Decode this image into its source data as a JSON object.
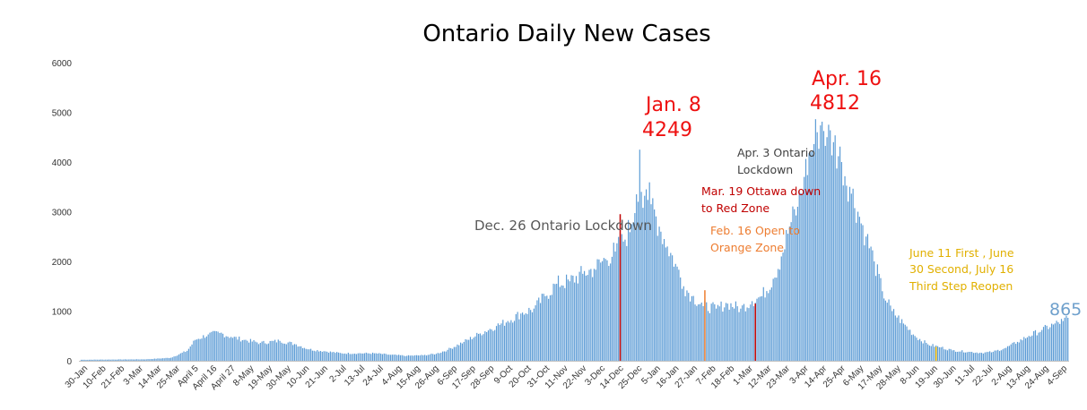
{
  "chart_data": {
    "type": "bar",
    "title": "Ontario Daily New Cases",
    "xlabel": "",
    "ylabel": "",
    "ylim": [
      0,
      6000
    ],
    "yticks": [
      0,
      1000,
      2000,
      3000,
      4000,
      5000,
      6000
    ],
    "grid": false,
    "legend": "none",
    "bar_color": "#5B9BD5",
    "x_tick_labels": [
      "30-Jan",
      "10-Feb",
      "21-Feb",
      "3-Mar",
      "14-Mar",
      "25-Mar",
      "April 5",
      "April 16",
      "April 27",
      "8-May",
      "19-May",
      "30-May",
      "10-Jun",
      "21-Jun",
      "2-Jul",
      "13-Jul",
      "24-Jul",
      "4-Aug",
      "15-Aug",
      "26-Aug",
      "6-Sep",
      "17-Sep",
      "28-Sep",
      "9-Oct",
      "20-Oct",
      "31-Oct",
      "11-Nov",
      "22-Nov",
      "3-Dec",
      "14-Dec",
      "25-Dec",
      "5-Jan",
      "16-Jan",
      "27-Jan",
      "7-Feb",
      "18-Feb",
      "1-Mar",
      "12-Mar",
      "23-Mar",
      "3-Apr",
      "14-Apr",
      "25-Apr",
      "6-May",
      "17-May",
      "28-May",
      "8-Jun",
      "19-Jun",
      "30-Jun",
      "11-Jul",
      "22-Jul",
      "2-Aug",
      "13-Aug",
      "24-Aug",
      "4-Sep"
    ],
    "series": [
      {
        "values": [
          [
            0,
            20
          ],
          [
            40,
            30
          ],
          [
            55,
            60
          ],
          [
            65,
            200
          ],
          [
            70,
            420
          ],
          [
            78,
            530
          ],
          [
            85,
            560
          ],
          [
            92,
            480
          ],
          [
            100,
            420
          ],
          [
            110,
            360
          ],
          [
            122,
            400
          ],
          [
            132,
            330
          ],
          [
            140,
            230
          ],
          [
            150,
            190
          ],
          [
            160,
            150
          ],
          [
            170,
            150
          ],
          [
            180,
            150
          ],
          [
            190,
            120
          ],
          [
            200,
            100
          ],
          [
            210,
            110
          ],
          [
            218,
            140
          ],
          [
            225,
            220
          ],
          [
            235,
            380
          ],
          [
            245,
            550
          ],
          [
            255,
            700
          ],
          [
            262,
            800
          ],
          [
            270,
            950
          ],
          [
            278,
            1050
          ],
          [
            285,
            1300
          ],
          [
            292,
            1550
          ],
          [
            300,
            1600
          ],
          [
            308,
            1750
          ],
          [
            315,
            1850
          ],
          [
            322,
            2050
          ],
          [
            328,
            2200
          ],
          [
            333,
            2400
          ],
          [
            338,
            2750
          ],
          [
            341,
            3350
          ],
          [
            342,
            3200
          ],
          [
            343,
            4249
          ],
          [
            344,
            3400
          ],
          [
            347,
            3450
          ],
          [
            350,
            3150
          ],
          [
            355,
            2700
          ],
          [
            360,
            2300
          ],
          [
            365,
            1950
          ],
          [
            370,
            1500
          ],
          [
            375,
            1300
          ],
          [
            382,
            1100
          ],
          [
            390,
            1050
          ],
          [
            397,
            1150
          ],
          [
            405,
            1050
          ],
          [
            412,
            1200
          ],
          [
            418,
            1300
          ],
          [
            425,
            1650
          ],
          [
            430,
            2100
          ],
          [
            435,
            2700
          ],
          [
            440,
            3100
          ],
          [
            444,
            3700
          ],
          [
            448,
            4200
          ],
          [
            452,
            4600
          ],
          [
            455,
            4812
          ],
          [
            458,
            4500
          ],
          [
            462,
            4400
          ],
          [
            467,
            4000
          ],
          [
            472,
            3500
          ],
          [
            477,
            3000
          ],
          [
            482,
            2500
          ],
          [
            487,
            2000
          ],
          [
            492,
            1400
          ],
          [
            498,
            1000
          ],
          [
            505,
            750
          ],
          [
            512,
            500
          ],
          [
            520,
            330
          ],
          [
            528,
            270
          ],
          [
            535,
            210
          ],
          [
            545,
            180
          ],
          [
            553,
            160
          ],
          [
            560,
            180
          ],
          [
            568,
            260
          ],
          [
            575,
            380
          ],
          [
            582,
            500
          ],
          [
            590,
            620
          ],
          [
            597,
            730
          ],
          [
            603,
            800
          ],
          [
            606,
            865
          ]
        ]
      }
    ],
    "annotations": {
      "peak1_date": "Jan. 8",
      "peak1_value": "4249",
      "peak2_date": "Apr. 16",
      "peak2_value": "4812",
      "last_value": "865",
      "dec26": "Dec. 26 Ontario Lockdown",
      "apr3_line1": "Apr. 3 Ontario",
      "apr3_line2": "Lockdown",
      "mar19_line1": "Mar. 19 Ottawa down",
      "mar19_line2": "to Red Zone",
      "feb16_line1": "Feb. 16 Open to",
      "feb16_line2": "Orange Zone",
      "june_line1": "June 11 First , June",
      "june_line2": "30 Second, July 16",
      "june_line3": "Third Step Reopen"
    },
    "colors": {
      "red": "#EE1111",
      "dark_red": "#C00000",
      "grey_text": "#595959",
      "dark_text": "#404040",
      "orange": "#ED7D31",
      "gold": "#E1B000",
      "light_blue": "#6FA0CC"
    }
  }
}
